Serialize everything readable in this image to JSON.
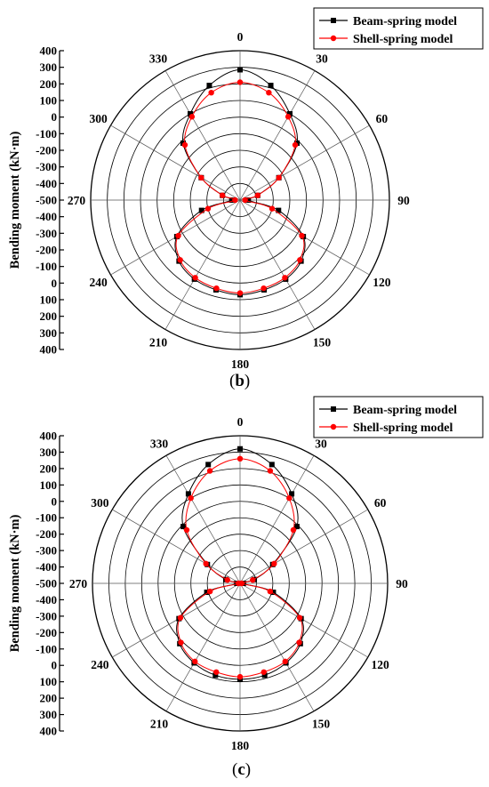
{
  "chart_data": [
    {
      "type": "polar-line",
      "panel_label": "b",
      "ylabel": "Bending moment (kN·m)",
      "radial_ticks": [
        "400",
        "300",
        "200",
        "100",
        "0",
        "-100",
        "-200",
        "-300",
        "-400",
        "-500",
        "-400",
        "-300",
        "-200",
        "-100",
        "0",
        "100",
        "200",
        "300",
        "400"
      ],
      "rlim": [
        -500,
        400
      ],
      "angle_ticks": [
        "0",
        "30",
        "60",
        "90",
        "120",
        "150",
        "180",
        "210",
        "240",
        "270",
        "300",
        "330"
      ],
      "grid": true,
      "legend_position": "top-right",
      "colors": {
        "beam": "#000000",
        "shell": "#ff0000"
      },
      "series": [
        {
          "name": "Beam-spring model",
          "theta": [
            0,
            15,
            30,
            45,
            60,
            75,
            90,
            105,
            120,
            135,
            150,
            165,
            180,
            195,
            210,
            225,
            240,
            255,
            270,
            285,
            300,
            315,
            330,
            345
          ],
          "values": [
            285,
            215,
            100,
            -15,
            -230,
            -390,
            -450,
            -260,
            -60,
            20,
            50,
            60,
            70,
            60,
            50,
            20,
            -60,
            -260,
            -450,
            -390,
            -230,
            -15,
            100,
            215
          ]
        },
        {
          "name": "Shell-spring model",
          "theta": [
            0,
            15,
            30,
            45,
            60,
            75,
            90,
            105,
            120,
            135,
            150,
            165,
            180,
            195,
            210,
            225,
            240,
            255,
            270,
            285,
            300,
            315,
            330,
            345
          ],
          "values": [
            210,
            170,
            80,
            -30,
            -230,
            -390,
            -470,
            -300,
            -70,
            10,
            40,
            50,
            60,
            50,
            40,
            10,
            -70,
            -300,
            -470,
            -390,
            -230,
            -30,
            80,
            170
          ]
        }
      ]
    },
    {
      "type": "polar-line",
      "panel_label": "c",
      "ylabel": "Bending moment (kN·m)",
      "radial_ticks": [
        "400",
        "300",
        "200",
        "100",
        "0",
        "-100",
        "-200",
        "-300",
        "-400",
        "-500",
        "-400",
        "-300",
        "-200",
        "-100",
        "0",
        "100",
        "200",
        "300",
        "400"
      ],
      "rlim": [
        -500,
        400
      ],
      "angle_ticks": [
        "0",
        "30",
        "60",
        "90",
        "120",
        "150",
        "180",
        "210",
        "240",
        "270",
        "300",
        "330"
      ],
      "grid": true,
      "legend_position": "top-right",
      "colors": {
        "beam": "#000000",
        "shell": "#ff0000"
      },
      "series": [
        {
          "name": "Beam-spring model",
          "theta": [
            0,
            15,
            30,
            45,
            60,
            75,
            90,
            105,
            120,
            135,
            150,
            165,
            180,
            195,
            210,
            225,
            240,
            255,
            270,
            285,
            300,
            315,
            330,
            345
          ],
          "values": [
            320,
            250,
            130,
            -10,
            -270,
            -410,
            -480,
            -290,
            -70,
            20,
            60,
            80,
            85,
            80,
            60,
            20,
            -70,
            -290,
            -480,
            -410,
            -270,
            -10,
            130,
            250
          ]
        },
        {
          "name": "Shell-spring model",
          "theta": [
            0,
            15,
            30,
            45,
            60,
            75,
            90,
            105,
            120,
            135,
            150,
            165,
            180,
            195,
            210,
            225,
            240,
            255,
            270,
            285,
            300,
            315,
            330,
            345
          ],
          "values": [
            260,
            210,
            100,
            -40,
            -260,
            -420,
            -490,
            -310,
            -80,
            10,
            50,
            60,
            70,
            60,
            50,
            10,
            -80,
            -310,
            -490,
            -420,
            -260,
            -40,
            100,
            210
          ]
        }
      ]
    }
  ]
}
